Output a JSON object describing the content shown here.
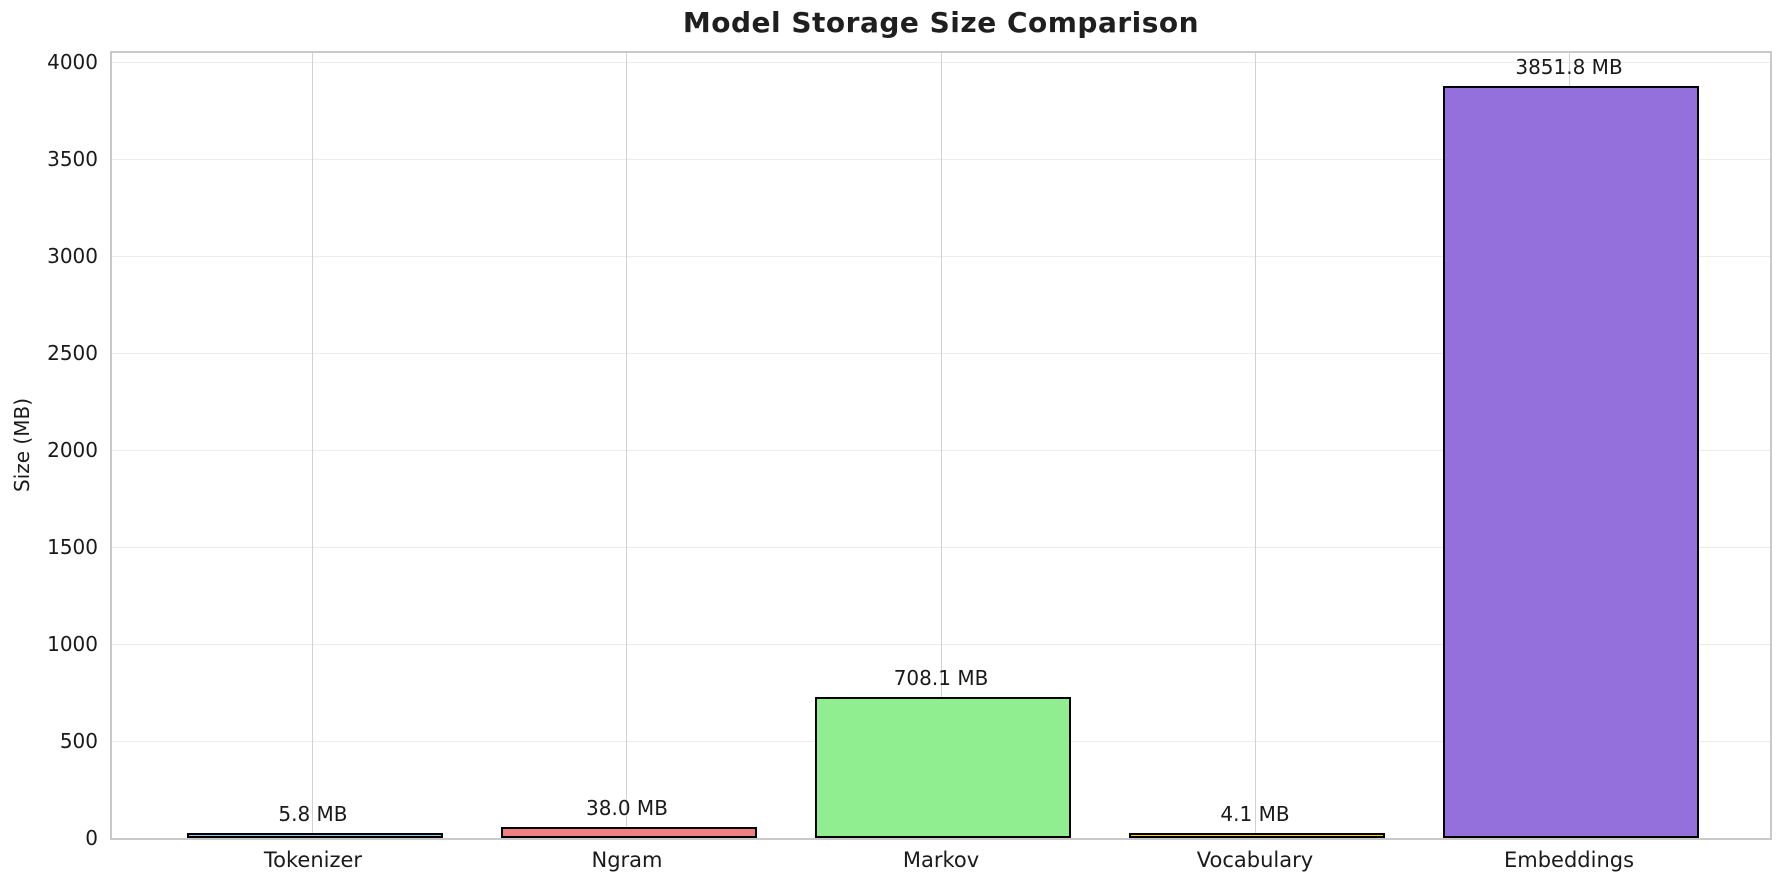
{
  "chart_data": {
    "type": "bar",
    "title": "Model Storage Size Comparison",
    "xlabel": "",
    "ylabel": "Size (MB)",
    "categories": [
      "Tokenizer",
      "Ngram",
      "Markov",
      "Vocabulary",
      "Embeddings"
    ],
    "values": [
      5.8,
      38.0,
      708.1,
      4.1,
      3851.8
    ],
    "value_labels": [
      "5.8 MB",
      "38.0 MB",
      "708.1 MB",
      "4.1 MB",
      "3851.8 MB"
    ],
    "bar_colors": [
      "#87CEEB",
      "#F08080",
      "#90EE90",
      "#FFD700",
      "#9370DB"
    ],
    "bar_edge_color": "#000000",
    "yticks": [
      0,
      500,
      1000,
      1500,
      2000,
      2500,
      3000,
      3500,
      4000
    ],
    "ylim": [
      0,
      4044
    ],
    "bar_width_units": 0.8,
    "grid": true,
    "legend": "none",
    "background_color": "#ffffff",
    "grid_color_h": "#ececec",
    "grid_color_v": "#d2d2d2",
    "spine_color": "#c9c9c9",
    "text_color": "#1a1a1a"
  }
}
